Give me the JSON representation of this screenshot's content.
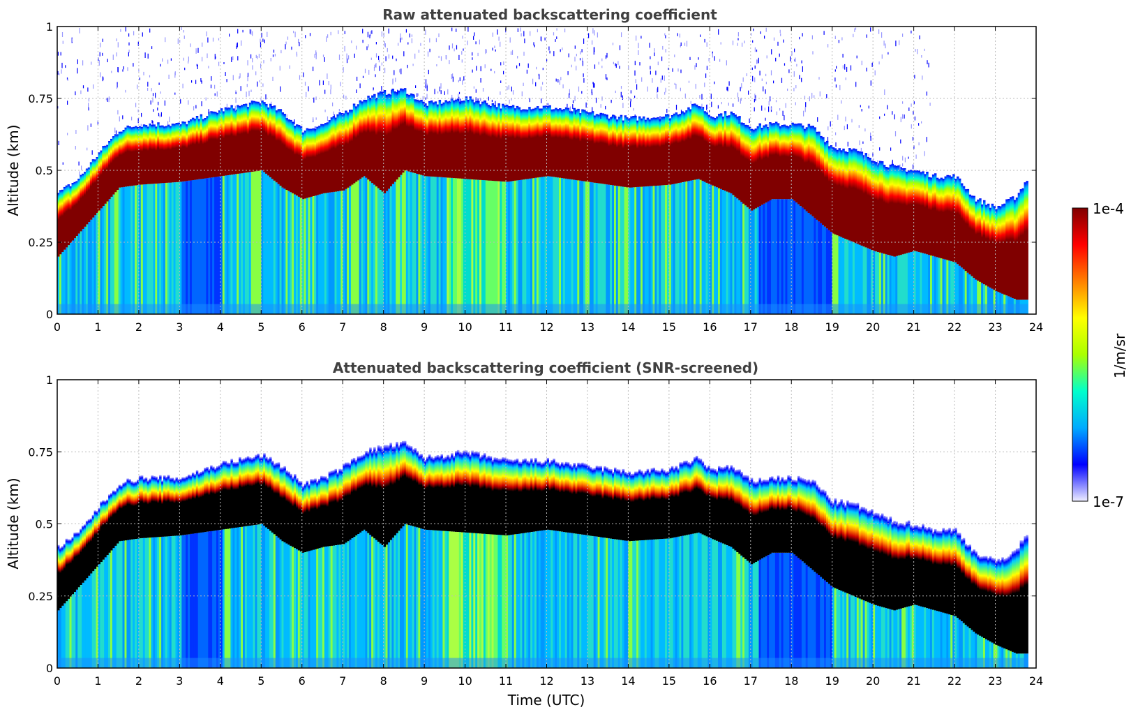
{
  "chart_data": [
    {
      "type": "heatmap",
      "title": "Raw attenuated backscattering coefficient",
      "xlabel": "",
      "ylabel": "Altitude (km)",
      "xlim": [
        0,
        24
      ],
      "ylim": [
        0,
        1
      ],
      "xticks": [
        "0",
        "1",
        "2",
        "3",
        "4",
        "5",
        "6",
        "7",
        "8",
        "9",
        "10",
        "11",
        "12",
        "13",
        "14",
        "15",
        "16",
        "17",
        "18",
        "19",
        "20",
        "21",
        "22",
        "23",
        "24"
      ],
      "yticks": [
        "0",
        "0.25",
        "0.5",
        "0.75",
        "1"
      ],
      "grid": true,
      "screened": false,
      "layer_top_km": {
        "time": [
          0,
          0.5,
          1,
          1.5,
          2,
          3,
          4,
          5,
          5.5,
          6,
          6.5,
          7,
          7.5,
          8,
          8.5,
          9,
          10,
          11,
          12,
          13,
          14,
          15,
          15.7,
          16,
          16.5,
          17,
          17.5,
          18,
          18.5,
          19,
          19.5,
          20,
          20.5,
          21,
          21.5,
          22,
          22.5,
          23,
          23.5,
          23.8
        ],
        "value": [
          0.42,
          0.47,
          0.56,
          0.64,
          0.66,
          0.66,
          0.71,
          0.74,
          0.7,
          0.64,
          0.66,
          0.7,
          0.75,
          0.77,
          0.78,
          0.73,
          0.75,
          0.72,
          0.72,
          0.7,
          0.68,
          0.69,
          0.73,
          0.69,
          0.7,
          0.65,
          0.66,
          0.66,
          0.65,
          0.58,
          0.57,
          0.54,
          0.51,
          0.5,
          0.48,
          0.48,
          0.4,
          0.37,
          0.41,
          0.48
        ]
      },
      "layer_base_km": {
        "time": [
          0,
          0.5,
          1,
          1.5,
          2,
          3,
          4,
          5,
          5.5,
          6,
          6.5,
          7,
          7.5,
          8,
          8.5,
          9,
          10,
          11,
          12,
          13,
          14,
          15,
          15.7,
          16,
          16.5,
          17,
          17.5,
          18,
          18.5,
          19,
          19.5,
          20,
          20.5,
          21,
          21.5,
          22,
          22.5,
          23,
          23.5,
          23.8
        ],
        "value": [
          0.2,
          0.28,
          0.36,
          0.44,
          0.45,
          0.46,
          0.48,
          0.5,
          0.44,
          0.4,
          0.42,
          0.43,
          0.48,
          0.42,
          0.5,
          0.48,
          0.47,
          0.46,
          0.48,
          0.46,
          0.44,
          0.45,
          0.47,
          0.45,
          0.42,
          0.36,
          0.4,
          0.4,
          0.34,
          0.28,
          0.25,
          0.22,
          0.2,
          0.22,
          0.2,
          0.18,
          0.12,
          0.08,
          0.05,
          0.05
        ]
      }
    },
    {
      "type": "heatmap",
      "title": "Attenuated backscattering coefficient (SNR-screened)",
      "xlabel": "Time (UTC)",
      "ylabel": "Altitude (km)",
      "xlim": [
        0,
        24
      ],
      "ylim": [
        0,
        1
      ],
      "xticks": [
        "0",
        "1",
        "2",
        "3",
        "4",
        "5",
        "6",
        "7",
        "8",
        "9",
        "10",
        "11",
        "12",
        "13",
        "14",
        "15",
        "16",
        "17",
        "18",
        "19",
        "20",
        "21",
        "22",
        "23",
        "24"
      ],
      "yticks": [
        "0",
        "0.25",
        "0.5",
        "0.75",
        "1"
      ],
      "grid": true,
      "screened": true,
      "saturated_color": "#000000",
      "layer_top_km": {
        "time": [
          0,
          0.5,
          1,
          1.5,
          2,
          3,
          4,
          5,
          5.5,
          6,
          6.5,
          7,
          7.5,
          8,
          8.5,
          9,
          10,
          11,
          12,
          13,
          14,
          15,
          15.7,
          16,
          16.5,
          17,
          17.5,
          18,
          18.5,
          19,
          19.5,
          20,
          20.5,
          21,
          21.5,
          22,
          22.5,
          23,
          23.5,
          23.8
        ],
        "value": [
          0.42,
          0.47,
          0.56,
          0.64,
          0.66,
          0.66,
          0.71,
          0.74,
          0.7,
          0.64,
          0.66,
          0.7,
          0.75,
          0.77,
          0.78,
          0.73,
          0.75,
          0.72,
          0.72,
          0.7,
          0.68,
          0.69,
          0.73,
          0.69,
          0.7,
          0.65,
          0.66,
          0.66,
          0.65,
          0.58,
          0.57,
          0.54,
          0.51,
          0.5,
          0.48,
          0.48,
          0.4,
          0.37,
          0.41,
          0.48
        ]
      },
      "layer_base_km": {
        "time": [
          0,
          0.5,
          1,
          1.5,
          2,
          3,
          4,
          5,
          5.5,
          6,
          6.5,
          7,
          7.5,
          8,
          8.5,
          9,
          10,
          11,
          12,
          13,
          14,
          15,
          15.7,
          16,
          16.5,
          17,
          17.5,
          18,
          18.5,
          19,
          19.5,
          20,
          20.5,
          21,
          21.5,
          22,
          22.5,
          23,
          23.5,
          23.8
        ],
        "value": [
          0.2,
          0.28,
          0.36,
          0.44,
          0.45,
          0.46,
          0.48,
          0.5,
          0.44,
          0.4,
          0.42,
          0.43,
          0.48,
          0.42,
          0.5,
          0.48,
          0.47,
          0.46,
          0.48,
          0.46,
          0.44,
          0.45,
          0.47,
          0.45,
          0.42,
          0.36,
          0.4,
          0.4,
          0.34,
          0.28,
          0.25,
          0.22,
          0.2,
          0.22,
          0.2,
          0.18,
          0.12,
          0.08,
          0.05,
          0.05
        ]
      }
    }
  ],
  "colorbar": {
    "label": "1/m/sr",
    "max_label": "1e-4",
    "min_label": "1e-7",
    "scale": "log",
    "colormap": "jet",
    "colors": [
      "#eeeeff",
      "#0000ff",
      "#00aaff",
      "#00ffcc",
      "#aaff00",
      "#ffff00",
      "#ff8000",
      "#ff0000",
      "#800000"
    ]
  }
}
